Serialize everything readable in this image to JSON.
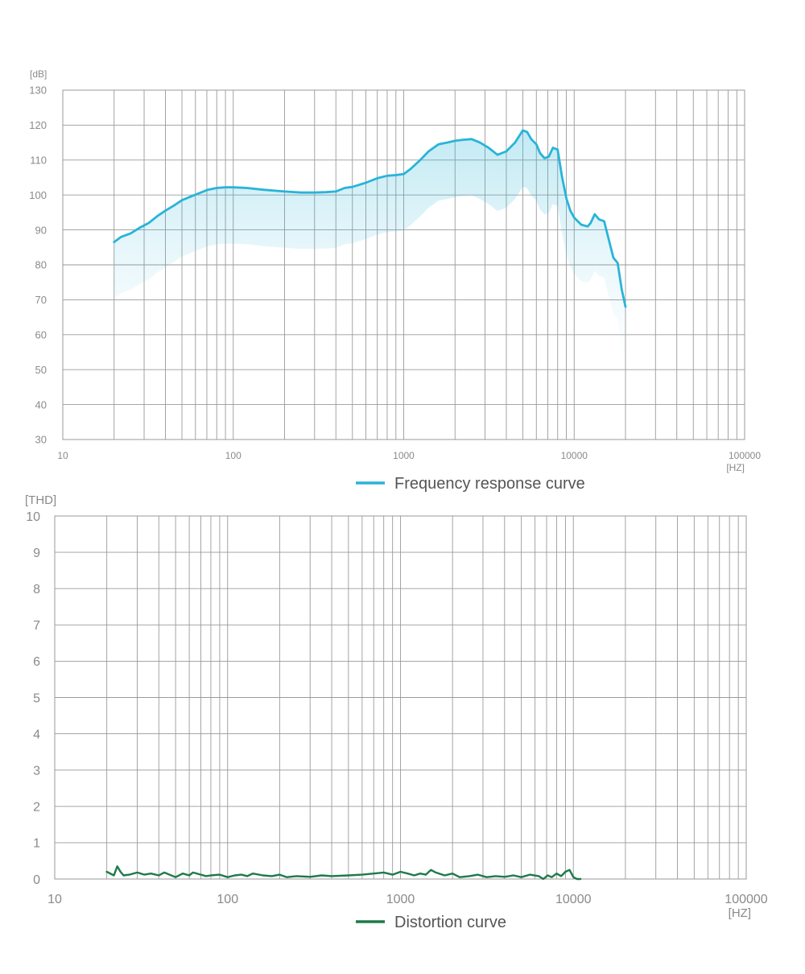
{
  "chart_data": [
    {
      "type": "line",
      "ylabel": "[dB]",
      "xlabel": "[HZ]",
      "x_scale": "log",
      "xlim": [
        10,
        100000
      ],
      "ylim": [
        30,
        130
      ],
      "x_ticks": [
        "10",
        "100",
        "1000",
        "10000",
        "100000"
      ],
      "y_ticks": [
        "130",
        "120",
        "110",
        "100",
        "90",
        "80",
        "70",
        "60",
        "50",
        "40",
        "30"
      ],
      "grid": true,
      "legend_position": "bottom-center",
      "series": [
        {
          "name": "Frequency response curve",
          "color": "#29b4d8",
          "x": [
            20,
            22,
            25,
            28,
            32,
            36,
            40,
            45,
            50,
            56,
            63,
            71,
            80,
            90,
            100,
            120,
            150,
            200,
            250,
            300,
            350,
            400,
            450,
            500,
            600,
            700,
            800,
            900,
            1000,
            1100,
            1250,
            1400,
            1600,
            1800,
            2000,
            2240,
            2500,
            2800,
            3150,
            3550,
            4000,
            4500,
            5000,
            5300,
            5600,
            6000,
            6300,
            6700,
            7100,
            7500,
            8000,
            8500,
            9000,
            9500,
            10000,
            11000,
            12000,
            12500,
            13200,
            14000,
            15000,
            16000,
            17000,
            18000,
            19000,
            20000
          ],
          "values": [
            86.5,
            88,
            89,
            90.5,
            92,
            94,
            95.5,
            97,
            98.5,
            99.5,
            100.5,
            101.5,
            102,
            102.2,
            102.2,
            102,
            101.5,
            101,
            100.7,
            100.7,
            100.8,
            101,
            102,
            102.3,
            103.5,
            104.8,
            105.5,
            105.7,
            106,
            107.5,
            110,
            112.5,
            114.5,
            115,
            115.5,
            115.8,
            116,
            115,
            113.5,
            111.5,
            112.5,
            115,
            118.5,
            118,
            116,
            114.5,
            112,
            110.5,
            111,
            113.5,
            113,
            105,
            99,
            95.5,
            93.5,
            91.5,
            91,
            92,
            94.5,
            93,
            92.5,
            87,
            82,
            80.5,
            73,
            68
          ]
        }
      ]
    },
    {
      "type": "line",
      "ylabel": "[THD]",
      "xlabel": "[HZ]",
      "x_scale": "log",
      "xlim": [
        10,
        100000
      ],
      "ylim": [
        0,
        10
      ],
      "x_ticks": [
        "10",
        "100",
        "1000",
        "10000",
        "100000"
      ],
      "y_ticks": [
        "10",
        "9",
        "8",
        "7",
        "6",
        "5",
        "4",
        "3",
        "2",
        "1",
        "0"
      ],
      "grid": true,
      "legend_position": "bottom-center",
      "series": [
        {
          "name": "Distortion curve",
          "color": "#1e7a4a",
          "x": [
            20,
            22,
            23,
            24,
            25,
            27,
            30,
            33,
            36,
            40,
            43,
            50,
            55,
            60,
            63,
            70,
            75,
            80,
            90,
            100,
            110,
            120,
            130,
            140,
            160,
            180,
            200,
            220,
            250,
            300,
            350,
            400,
            500,
            600,
            700,
            800,
            900,
            1000,
            1100,
            1200,
            1300,
            1400,
            1500,
            1600,
            1800,
            2000,
            2200,
            2500,
            2800,
            3150,
            3550,
            4000,
            4500,
            5000,
            5600,
            6300,
            6700,
            7100,
            7500,
            8000,
            8500,
            9000,
            9500,
            10000,
            10500,
            11000
          ],
          "values": [
            0.2,
            0.1,
            0.35,
            0.2,
            0.1,
            0.12,
            0.18,
            0.12,
            0.15,
            0.1,
            0.18,
            0.05,
            0.15,
            0.1,
            0.18,
            0.12,
            0.08,
            0.1,
            0.12,
            0.05,
            0.1,
            0.12,
            0.08,
            0.15,
            0.1,
            0.08,
            0.12,
            0.05,
            0.08,
            0.06,
            0.1,
            0.08,
            0.1,
            0.12,
            0.15,
            0.18,
            0.12,
            0.2,
            0.15,
            0.1,
            0.15,
            0.12,
            0.25,
            0.18,
            0.1,
            0.15,
            0.05,
            0.08,
            0.12,
            0.05,
            0.08,
            0.06,
            0.1,
            0.05,
            0.12,
            0.08,
            0.0,
            0.1,
            0.05,
            0.15,
            0.08,
            0.2,
            0.25,
            0.05,
            0.0,
            0.0
          ]
        }
      ]
    }
  ]
}
